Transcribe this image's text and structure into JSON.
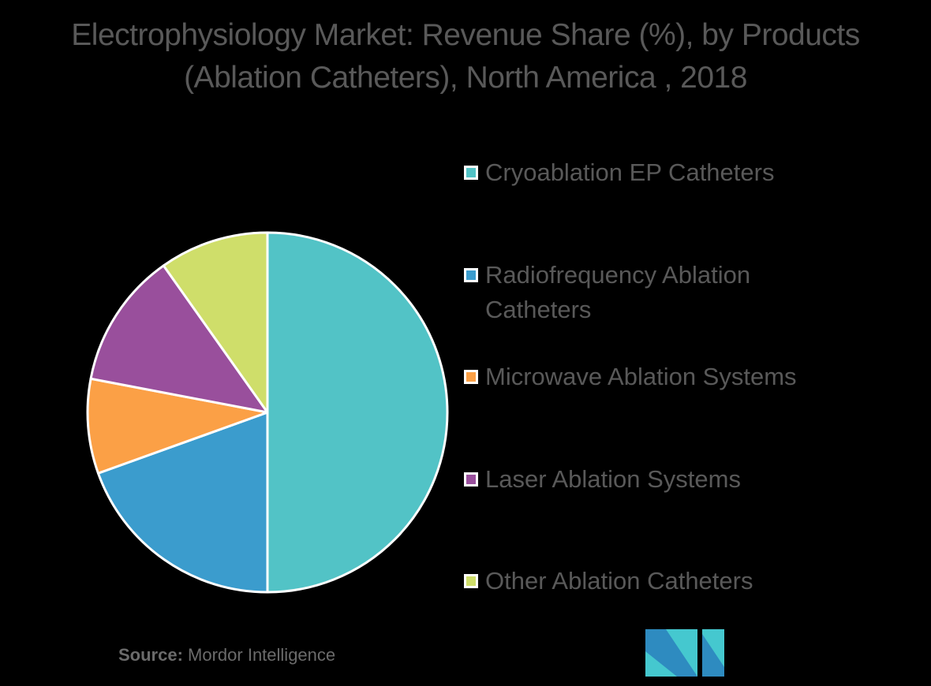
{
  "title": {
    "line1": "Electrophysiology  Market: Revenue Share (%), by Products",
    "line2": "(Ablation Catheters), North America , 2018"
  },
  "legend": {
    "items": [
      {
        "label": "Cryoablation EP Catheters",
        "color": "#52C3C6"
      },
      {
        "label": "Radiofrequency Ablation Catheters",
        "color": "#3B9CCD"
      },
      {
        "label": "Microwave Ablation Systems",
        "color": "#FBA046"
      },
      {
        "label": "Laser Ablation Systems",
        "color": "#994F9C"
      },
      {
        "label": "Other Ablation Catheters",
        "color": "#CFDE6A"
      }
    ]
  },
  "source": {
    "prefix": "Source:",
    "text": " Mordor Intelligence"
  },
  "logo": {
    "name": "Mordor Intelligence logo",
    "colors": [
      "#2E8BC0",
      "#45C8CF"
    ]
  },
  "chart_data": {
    "type": "pie",
    "title": "Electrophysiology  Market: Revenue Share (%), by Products (Ablation Catheters), North America , 2018",
    "categories": [
      "Cryoablation EP Catheters",
      "Radiofrequency Ablation Catheters",
      "Microwave Ablation Systems",
      "Laser Ablation Systems",
      "Other Ablation Catheters"
    ],
    "values": [
      50.0,
      19.5,
      8.5,
      12.2,
      9.8
    ],
    "colors": [
      "#52C3C6",
      "#3B9CCD",
      "#FBA046",
      "#994F9C",
      "#CFDE6A"
    ],
    "start_angle_deg": 0,
    "direction": "clockwise",
    "data_labels": false,
    "legend_position": "right",
    "source": "Mordor Intelligence"
  }
}
